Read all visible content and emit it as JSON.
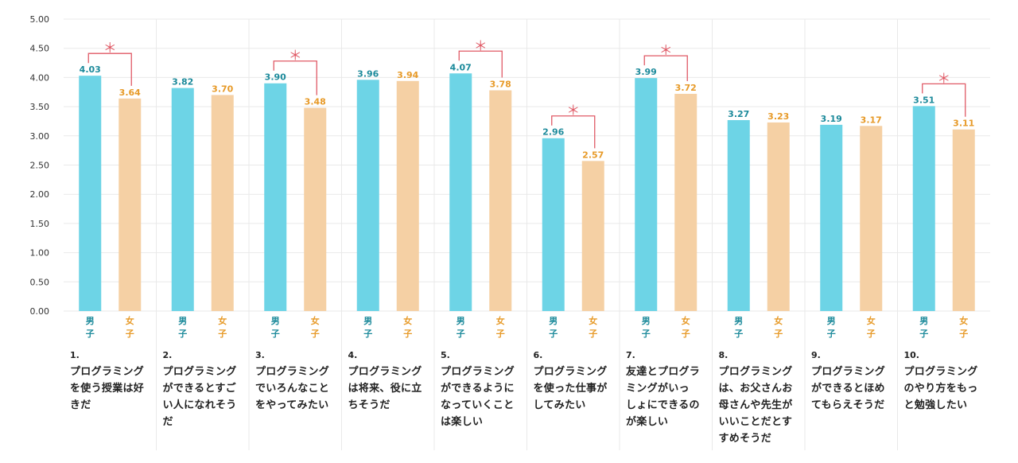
{
  "chart_data": {
    "type": "bar",
    "ylim": [
      0,
      5
    ],
    "y_ticks": [
      "0.00",
      "0.50",
      "1.00",
      "1.50",
      "2.00",
      "2.50",
      "3.00",
      "3.50",
      "4.00",
      "4.50",
      "5.00"
    ],
    "grid": true,
    "significance_marker": "＊",
    "colors": {
      "boys": "#6dd4e6",
      "girls": "#f5d0a4",
      "boys_text": "#1c8a9b",
      "girls_text": "#e79a28",
      "marker": "#e05a66",
      "grid": "#e9e9e9"
    },
    "series": [
      {
        "name": "男子",
        "values": [
          4.03,
          3.82,
          3.9,
          3.96,
          4.07,
          2.96,
          3.99,
          3.27,
          3.19,
          3.51
        ],
        "labels": [
          "4.03",
          "3.82",
          "3.90",
          "3.96",
          "4.07",
          "2.96",
          "3.99",
          "3.27",
          "3.19",
          "3.51"
        ]
      },
      {
        "name": "女子",
        "values": [
          3.64,
          3.7,
          3.48,
          3.94,
          3.78,
          2.57,
          3.72,
          3.23,
          3.17,
          3.11
        ],
        "labels": [
          "3.64",
          "3.70",
          "3.48",
          "3.94",
          "3.78",
          "2.57",
          "3.72",
          "3.23",
          "3.17",
          "3.11"
        ]
      }
    ],
    "significant": [
      true,
      false,
      true,
      false,
      true,
      true,
      true,
      false,
      false,
      true
    ],
    "categories": [
      {
        "num": "1.",
        "text": "プログラミング\nを使う授業は好\nきだ"
      },
      {
        "num": "2.",
        "text": "プログラミング\nができるとすご\nい人になれそう\nだ"
      },
      {
        "num": "3.",
        "text": "プログラミング\nでいろんなこと\nをやってみたい"
      },
      {
        "num": "4.",
        "text": "プログラミング\nは将来、役に立\nちそうだ"
      },
      {
        "num": "5.",
        "text": "プログラミング\nができるように\nなっていくこと\nは楽しい"
      },
      {
        "num": "6.",
        "text": "プログラミング\nを使った仕事が\nしてみたい"
      },
      {
        "num": "7.",
        "text": "友達とプログラ\nミングがいっ\nしょにできるの\nが楽しい"
      },
      {
        "num": "8.",
        "text": "プログラミング\nは、お父さんお\n母さんや先生が\nいいことだとす\nすめそうだ"
      },
      {
        "num": "9.",
        "text": "プログラミング\nができるとほめ\nてもらえそうだ"
      },
      {
        "num": "10.",
        "text": "プログラミング\nのやり方をもっ\nと勉強したい"
      }
    ]
  }
}
